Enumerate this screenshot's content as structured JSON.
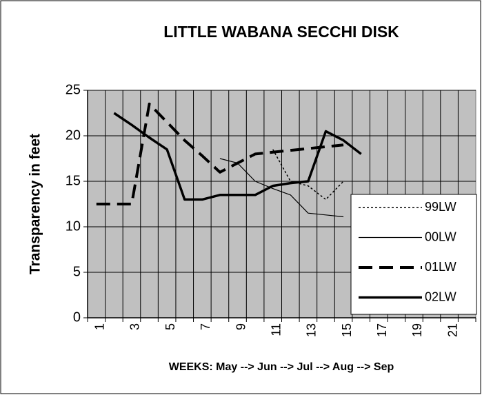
{
  "chart_data": {
    "type": "line",
    "title": "LITTLE WABANA SECCHI DISK",
    "y_label": "Transparency in feet",
    "x_label": "WEEKS:  May --> Jun --> Jul --> Aug --> Sep",
    "categories": [
      "1",
      null,
      "3",
      null,
      "5",
      null,
      "7",
      null,
      "9",
      null,
      "11",
      null,
      "13",
      null,
      "15",
      null,
      "17",
      null,
      "19",
      null,
      "21",
      null
    ],
    "ylim": [
      0,
      25
    ],
    "yticks": [
      0,
      5,
      10,
      15,
      20,
      25
    ],
    "grid": true,
    "legend": "right",
    "series": [
      {
        "name": "99LW",
        "color": "#000000",
        "dash": "dotted",
        "width": 1.5,
        "values": [
          null,
          null,
          null,
          null,
          null,
          null,
          null,
          null,
          null,
          null,
          18.5,
          15,
          14.5,
          13,
          15,
          null,
          null,
          null,
          null,
          null,
          null,
          null
        ]
      },
      {
        "name": "00LW",
        "color": "#000000",
        "dash": "solid",
        "width": 1.2,
        "values": [
          null,
          null,
          null,
          null,
          null,
          null,
          null,
          17.5,
          17,
          15,
          14.2,
          13.5,
          11.5,
          11.3,
          11.1,
          null,
          null,
          null,
          null,
          null,
          null,
          null
        ]
      },
      {
        "name": "01LW",
        "color": "#000000",
        "dash": "dashed",
        "width": 4,
        "values": [
          12.5,
          12.5,
          12.5,
          23.5,
          21.5,
          19.5,
          17.8,
          16,
          17,
          18,
          18.2,
          18.4,
          18.6,
          18.8,
          19,
          null,
          null,
          null,
          null,
          null,
          null,
          null
        ]
      },
      {
        "name": "02LW",
        "color": "#000000",
        "dash": "solid",
        "width": 3.5,
        "values": [
          null,
          22.5,
          21.2,
          19.8,
          18.5,
          13,
          13,
          13.5,
          13.5,
          13.5,
          14.5,
          14.8,
          15,
          20.5,
          19.5,
          18,
          null,
          null,
          null,
          null,
          null,
          null
        ]
      }
    ]
  }
}
